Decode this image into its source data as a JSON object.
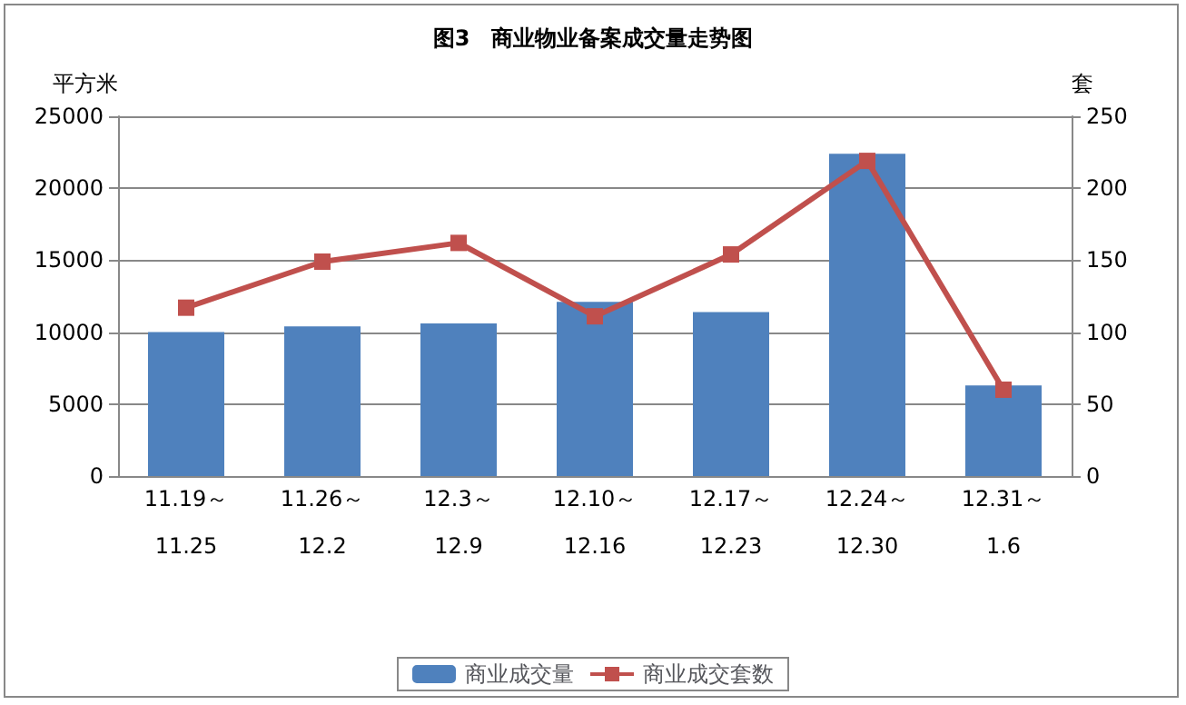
{
  "chart_data": {
    "type": "bar",
    "title": "图3　商业物业备案成交量走势图",
    "ylabel": "平方米",
    "y2label": "套",
    "categories": [
      "11.19～\n\n11.25",
      "11.26～\n\n12.2",
      "12.3～\n\n12.9",
      "12.10～\n\n12.16",
      "12.17～\n\n12.23",
      "12.24～\n\n12.30",
      "12.31～\n\n1.6"
    ],
    "series": [
      {
        "name": "商业成交量",
        "color": "#4f81bd",
        "values": [
          10000,
          10400,
          10600,
          12100,
          11400,
          22400,
          6300
        ]
      },
      {
        "name": "商业成交套数",
        "type": "line",
        "axis": "y2",
        "color": "#c0504d",
        "values": [
          117,
          149,
          162,
          111,
          154,
          219,
          60
        ]
      }
    ],
    "ylim": [
      0,
      25000
    ],
    "yticks": [
      0,
      5000,
      10000,
      15000,
      20000,
      25000
    ],
    "y2lim": [
      0,
      250
    ],
    "y2ticks": [
      0,
      50,
      100,
      150,
      200,
      250
    ],
    "grid": "y",
    "legend": "bottom",
    "marker": "square"
  }
}
